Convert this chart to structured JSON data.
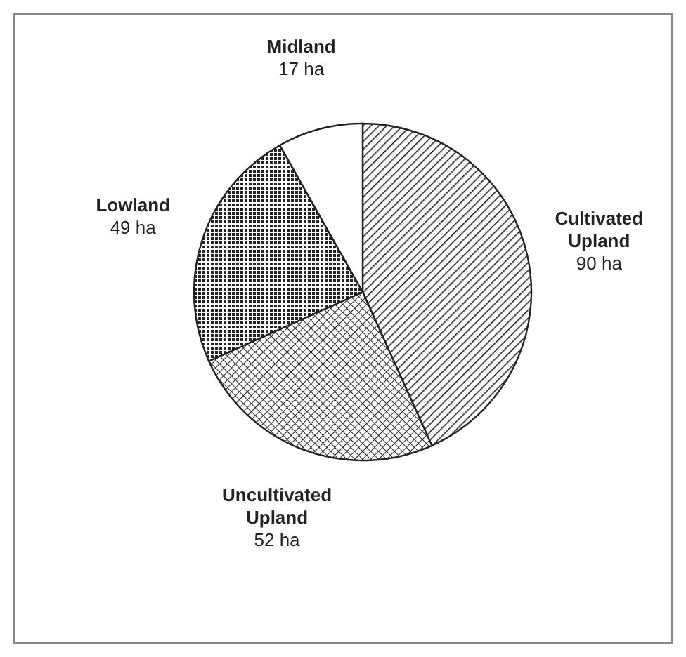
{
  "chart_data": {
    "type": "pie",
    "categories": [
      "Cultivated Upland",
      "Uncultivated Upland",
      "Lowland",
      "Midland"
    ],
    "values": [
      90,
      52,
      49,
      17
    ],
    "colors": [
      "#222222",
      "#222222",
      "#222222",
      "#222222"
    ],
    "value_labels": [
      "90 ha",
      "52 ha",
      "49 ha",
      "17 ha"
    ]
  }
}
